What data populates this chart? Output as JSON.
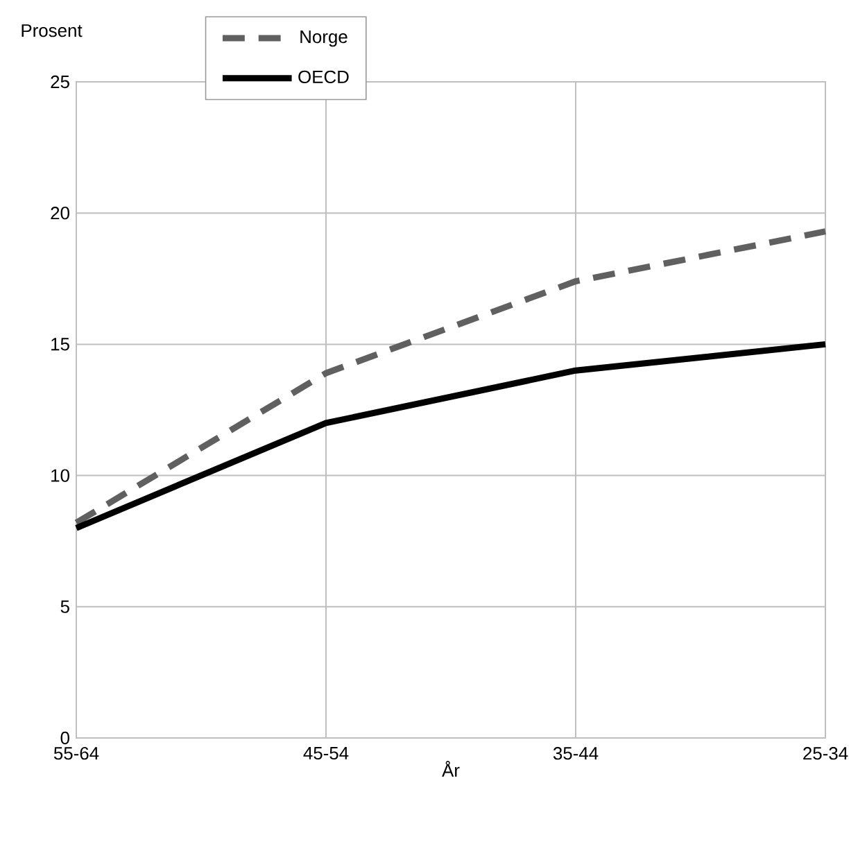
{
  "chart_data": {
    "type": "line",
    "ylabel": "Prosent",
    "xlabel": "År",
    "categories": [
      "55-64",
      "45-54",
      "35-44",
      "25-34"
    ],
    "series": [
      {
        "name": "Norge",
        "color": "#606060",
        "line_style": "dashed",
        "values": [
          8.2,
          13.9,
          17.4,
          19.3
        ]
      },
      {
        "name": "OECD",
        "color": "#000000",
        "line_style": "solid",
        "values": [
          8,
          12,
          14,
          15
        ]
      }
    ],
    "ylim": [
      0,
      25
    ],
    "yticks": [
      0,
      5,
      10,
      15,
      20,
      25
    ],
    "grid": true,
    "legend": "top left",
    "marker": "none"
  }
}
